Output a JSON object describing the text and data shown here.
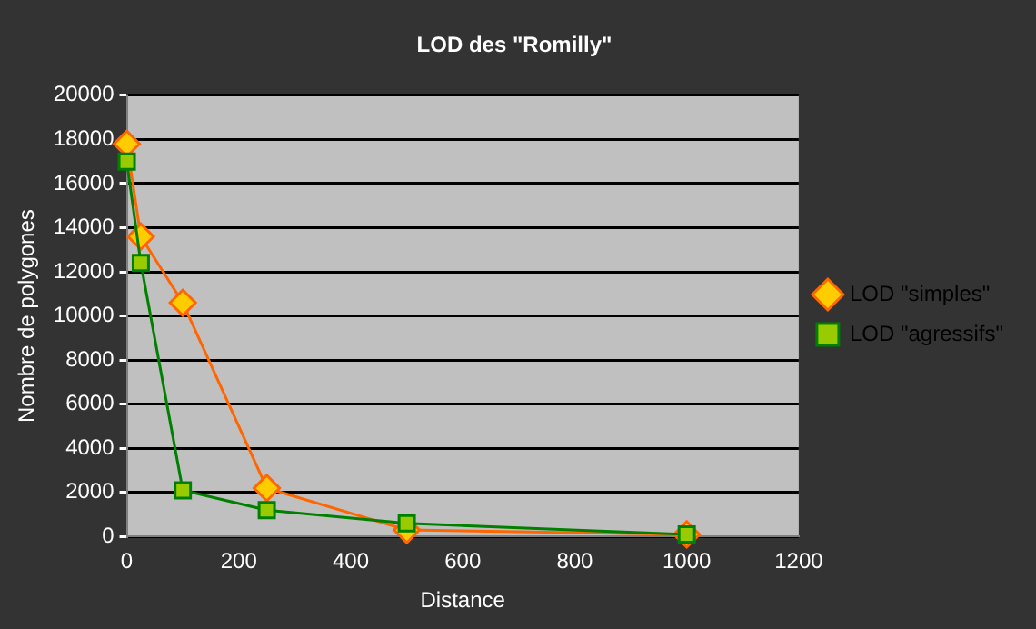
{
  "chart_data": {
    "type": "line",
    "title": "LOD des \"Romilly\"",
    "xlabel": "Distance",
    "ylabel": "Nombre de polygones",
    "xlim": [
      0,
      1200
    ],
    "xticks": [
      0,
      200,
      400,
      600,
      800,
      1000,
      1200
    ],
    "ylim": [
      0,
      20000
    ],
    "yticks": [
      0,
      2000,
      4000,
      6000,
      8000,
      10000,
      12000,
      14000,
      16000,
      18000,
      20000
    ],
    "grid": "y",
    "legend": "right",
    "series": [
      {
        "name": "LOD \"simples\"",
        "color": "#ff6600",
        "marker": "diamond",
        "x": [
          0,
          25,
          100,
          250,
          500,
          1000
        ],
        "values": [
          17800,
          13600,
          10600,
          2200,
          300,
          100
        ]
      },
      {
        "name": "LOD \"agressifs\"",
        "color": "#008000",
        "marker": "square",
        "x": [
          0,
          25,
          100,
          250,
          500,
          1000
        ],
        "values": [
          17000,
          12400,
          2100,
          1200,
          600,
          100
        ]
      }
    ]
  }
}
